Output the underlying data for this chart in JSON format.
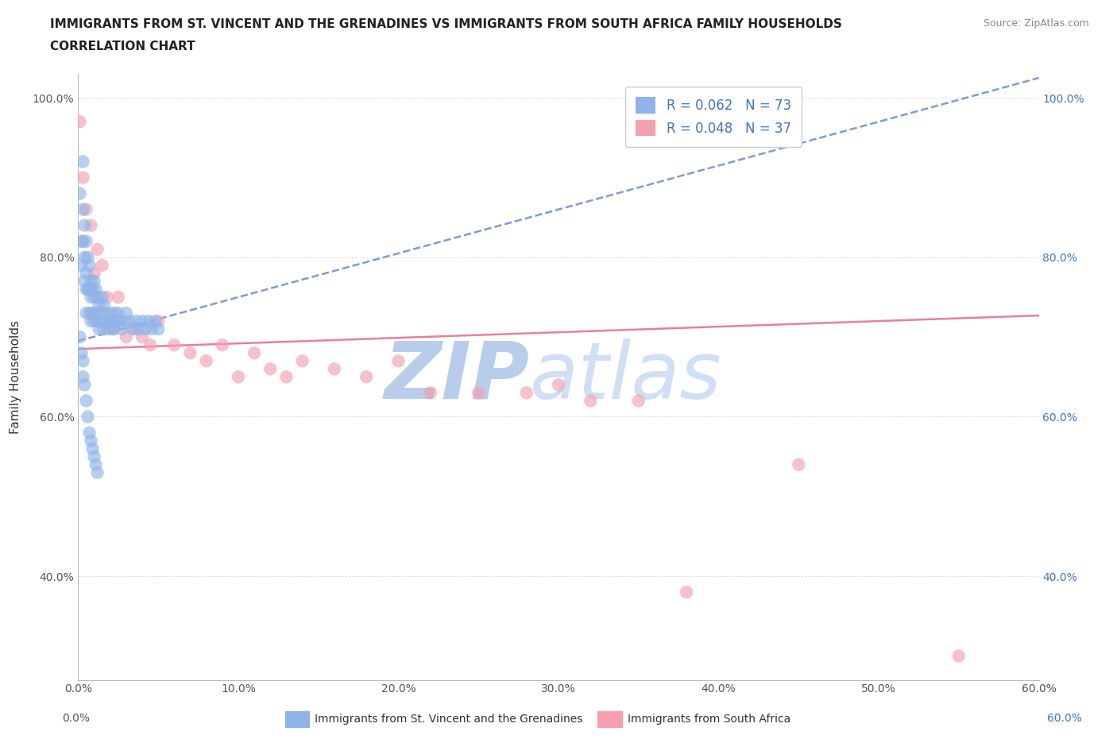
{
  "title_line1": "IMMIGRANTS FROM ST. VINCENT AND THE GRENADINES VS IMMIGRANTS FROM SOUTH AFRICA FAMILY HOUSEHOLDS",
  "title_line2": "CORRELATION CHART",
  "source_text": "Source: ZipAtlas.com",
  "ylabel": "Family Households",
  "xlim": [
    0.0,
    0.6
  ],
  "ylim": [
    0.27,
    1.03
  ],
  "xtick_values": [
    0.0,
    0.1,
    0.2,
    0.3,
    0.4,
    0.5,
    0.6
  ],
  "ytick_values": [
    0.4,
    0.6,
    0.8,
    1.0
  ],
  "blue_R": 0.062,
  "blue_N": 73,
  "pink_R": 0.048,
  "pink_N": 37,
  "blue_color": "#90b4e8",
  "pink_color": "#f4a0b0",
  "blue_line_color": "#7090d0",
  "pink_line_color": "#e87090",
  "legend_text_color": "#4472c4",
  "watermark_zip_color": "#c8d8f0",
  "watermark_atlas_color": "#c8d8f0",
  "background_color": "#ffffff",
  "grid_color": "#dddddd",
  "blue_x": [
    0.001,
    0.002,
    0.002,
    0.003,
    0.003,
    0.003,
    0.004,
    0.004,
    0.004,
    0.005,
    0.005,
    0.005,
    0.005,
    0.006,
    0.006,
    0.007,
    0.007,
    0.007,
    0.008,
    0.008,
    0.008,
    0.009,
    0.009,
    0.01,
    0.01,
    0.01,
    0.011,
    0.011,
    0.012,
    0.012,
    0.013,
    0.013,
    0.014,
    0.015,
    0.015,
    0.016,
    0.016,
    0.017,
    0.018,
    0.019,
    0.02,
    0.021,
    0.022,
    0.023,
    0.024,
    0.025,
    0.026,
    0.027,
    0.028,
    0.03,
    0.032,
    0.034,
    0.036,
    0.038,
    0.04,
    0.042,
    0.044,
    0.046,
    0.048,
    0.05,
    0.001,
    0.002,
    0.003,
    0.003,
    0.004,
    0.005,
    0.006,
    0.007,
    0.008,
    0.009,
    0.01,
    0.011,
    0.012
  ],
  "blue_y": [
    0.88,
    0.82,
    0.79,
    0.92,
    0.86,
    0.82,
    0.84,
    0.8,
    0.77,
    0.82,
    0.78,
    0.76,
    0.73,
    0.8,
    0.76,
    0.79,
    0.76,
    0.73,
    0.77,
    0.75,
    0.72,
    0.76,
    0.73,
    0.77,
    0.75,
    0.72,
    0.76,
    0.73,
    0.75,
    0.72,
    0.74,
    0.71,
    0.73,
    0.75,
    0.72,
    0.74,
    0.71,
    0.73,
    0.72,
    0.71,
    0.73,
    0.72,
    0.71,
    0.73,
    0.72,
    0.73,
    0.72,
    0.71,
    0.72,
    0.73,
    0.72,
    0.71,
    0.72,
    0.71,
    0.72,
    0.71,
    0.72,
    0.71,
    0.72,
    0.71,
    0.7,
    0.68,
    0.67,
    0.65,
    0.64,
    0.62,
    0.6,
    0.58,
    0.57,
    0.56,
    0.55,
    0.54,
    0.53
  ],
  "pink_x": [
    0.001,
    0.003,
    0.005,
    0.008,
    0.01,
    0.012,
    0.015,
    0.018,
    0.02,
    0.022,
    0.025,
    0.03,
    0.035,
    0.04,
    0.045,
    0.05,
    0.06,
    0.07,
    0.08,
    0.09,
    0.1,
    0.11,
    0.12,
    0.13,
    0.14,
    0.16,
    0.18,
    0.2,
    0.22,
    0.25,
    0.28,
    0.3,
    0.32,
    0.35,
    0.38,
    0.45,
    0.55
  ],
  "pink_y": [
    0.97,
    0.9,
    0.86,
    0.84,
    0.78,
    0.81,
    0.79,
    0.75,
    0.72,
    0.71,
    0.75,
    0.7,
    0.71,
    0.7,
    0.69,
    0.72,
    0.69,
    0.68,
    0.67,
    0.69,
    0.65,
    0.68,
    0.66,
    0.65,
    0.67,
    0.66,
    0.65,
    0.67,
    0.63,
    0.63,
    0.63,
    0.64,
    0.62,
    0.62,
    0.38,
    0.54,
    0.3
  ]
}
